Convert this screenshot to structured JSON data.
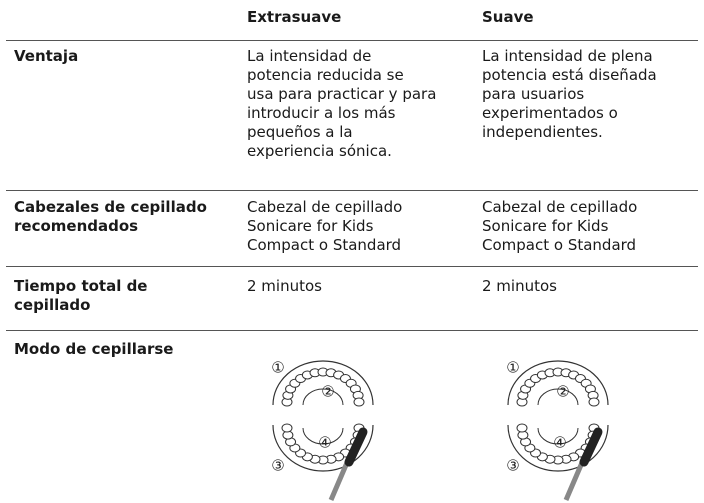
{
  "header": {
    "columns": [
      "Extrasuave",
      "Suave"
    ]
  },
  "rows": [
    {
      "label": [
        "Ventaja"
      ],
      "cells": [
        [
          "La intensidad de",
          "potencia reducida se",
          "usa para practicar y para",
          "introducir a los más",
          "pequeños a la",
          "experiencia sónica."
        ],
        [
          "La intensidad de plena",
          "potencia está diseñada",
          "para usuarios",
          "experimentados o",
          "independientes."
        ]
      ]
    },
    {
      "label": [
        "Cabezales de cepillado",
        "recomendados"
      ],
      "cells": [
        [
          "Cabezal de cepillado",
          "Sonicare for Kids",
          "Compact o Standard"
        ],
        [
          "Cabezal de cepillado",
          "Sonicare for Kids",
          "Compact o Standard"
        ]
      ]
    },
    {
      "label": [
        "Tiempo total de",
        "cepillado"
      ],
      "cells": [
        [
          "2 minutos"
        ],
        [
          "2 minutos"
        ]
      ]
    },
    {
      "label": [
        "Modo de cepillarse"
      ],
      "cells": [
        [],
        []
      ]
    }
  ],
  "diagram": {
    "labels": [
      "①",
      "②",
      "③",
      "④"
    ]
  }
}
